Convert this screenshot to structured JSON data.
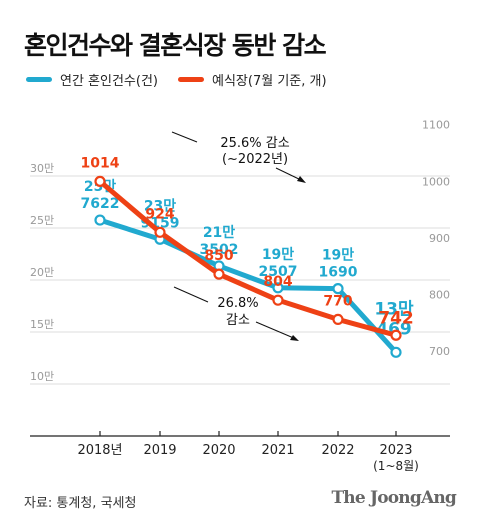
{
  "title": "혼인건수와 결혼식장 동반 감소",
  "legend": [
    {
      "label": "연간 혼인건수(건)",
      "color": "#21a9cf"
    },
    {
      "label": "예식장(7월 기준, 개)",
      "color": "#ee4115"
    }
  ],
  "source": "자료: 통계청, 국세청",
  "logo": "The JoongAng",
  "chart_data": {
    "type": "line",
    "categories": [
      "2018년",
      "2019",
      "2020",
      "2021",
      "2022",
      "2023"
    ],
    "category_sublabel": "(1~8월)",
    "left_axis": {
      "ticks": [
        "30만",
        "25만",
        "20만",
        "15만",
        "10만"
      ],
      "tick_values": [
        300000,
        250000,
        200000,
        150000,
        100000
      ],
      "range": [
        0,
        300000
      ]
    },
    "right_axis": {
      "ticks": [
        "1100",
        "1000",
        "900",
        "800",
        "700"
      ],
      "tick_values": [
        1100,
        1000,
        900,
        800,
        700
      ],
      "range": [
        700,
        1300
      ]
    },
    "series": [
      {
        "name": "연간 혼인건수(건)",
        "axis": "left",
        "color": "#21a9cf",
        "values": [
          257622,
          239159,
          213502,
          192507,
          191690,
          130469
        ],
        "labels": [
          [
            "25만",
            "7622"
          ],
          [
            "23만",
            "9159"
          ],
          [
            "21만",
            "3502"
          ],
          [
            "19만",
            "2507"
          ],
          [
            "19만",
            "1690"
          ],
          [
            "13만",
            "469"
          ]
        ]
      },
      {
        "name": "예식장(7월 기준, 개)",
        "axis": "right",
        "color": "#ee4115",
        "values": [
          1014,
          924,
          850,
          804,
          770,
          742
        ],
        "labels": [
          [
            "1014"
          ],
          [
            "924"
          ],
          [
            "850"
          ],
          [
            "804"
          ],
          [
            "770"
          ],
          [
            "742"
          ]
        ]
      }
    ],
    "annotations": [
      {
        "lines": [
          "25.6% 감소",
          "(~2022년)"
        ],
        "series": "연간 혼인건수(건)"
      },
      {
        "lines": [
          "26.8%",
          "감소"
        ],
        "series": "예식장(7월 기준, 개)"
      }
    ]
  }
}
